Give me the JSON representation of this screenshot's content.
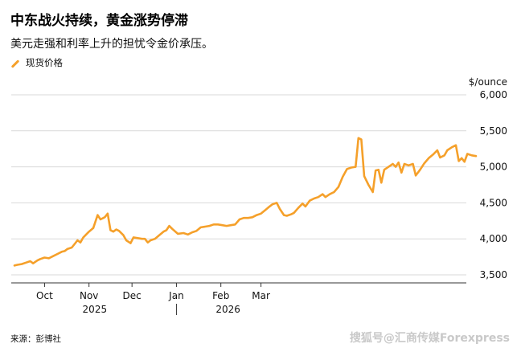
{
  "chart_data": {
    "type": "line",
    "title": "中东战火持续，黄金涨势停滞",
    "subtitle": "美元走强和利率上升的担忧令金价承压。",
    "unit_label": "$/ounce",
    "series": [
      {
        "name": "现货价格",
        "color": "#F5A02A",
        "points": [
          [
            "2025-09-10",
            3630
          ],
          [
            "2025-09-12",
            3640
          ],
          [
            "2025-09-15",
            3650
          ],
          [
            "2025-09-18",
            3670
          ],
          [
            "2025-09-21",
            3690
          ],
          [
            "2025-09-23",
            3660
          ],
          [
            "2025-09-26",
            3700
          ],
          [
            "2025-09-28",
            3720
          ],
          [
            "2025-10-01",
            3740
          ],
          [
            "2025-10-04",
            3730
          ],
          [
            "2025-10-07",
            3760
          ],
          [
            "2025-10-10",
            3790
          ],
          [
            "2025-10-13",
            3820
          ],
          [
            "2025-10-15",
            3830
          ],
          [
            "2025-10-17",
            3860
          ],
          [
            "2025-10-20",
            3880
          ],
          [
            "2025-10-22",
            3930
          ],
          [
            "2025-10-24",
            3980
          ],
          [
            "2025-10-26",
            3950
          ],
          [
            "2025-10-28",
            4020
          ],
          [
            "2025-11-01",
            4100
          ],
          [
            "2025-11-04",
            4150
          ],
          [
            "2025-11-07",
            4330
          ],
          [
            "2025-11-09",
            4270
          ],
          [
            "2025-11-12",
            4300
          ],
          [
            "2025-11-14",
            4350
          ],
          [
            "2025-11-16",
            4120
          ],
          [
            "2025-11-18",
            4100
          ],
          [
            "2025-11-20",
            4130
          ],
          [
            "2025-11-22",
            4110
          ],
          [
            "2025-11-25",
            4050
          ],
          [
            "2025-11-27",
            3980
          ],
          [
            "2025-11-30",
            3940
          ],
          [
            "2025-12-02",
            4020
          ],
          [
            "2025-12-05",
            4010
          ],
          [
            "2025-12-08",
            4000
          ],
          [
            "2025-12-10",
            4000
          ],
          [
            "2025-12-12",
            3950
          ],
          [
            "2025-12-14",
            3980
          ],
          [
            "2025-12-17",
            4000
          ],
          [
            "2025-12-20",
            4050
          ],
          [
            "2025-12-23",
            4100
          ],
          [
            "2025-12-25",
            4120
          ],
          [
            "2025-12-27",
            4180
          ],
          [
            "2025-12-29",
            4140
          ],
          [
            "2026-01-02",
            4070
          ],
          [
            "2026-01-06",
            4080
          ],
          [
            "2026-01-09",
            4060
          ],
          [
            "2026-01-12",
            4090
          ],
          [
            "2026-01-15",
            4110
          ],
          [
            "2026-01-18",
            4160
          ],
          [
            "2026-01-21",
            4170
          ],
          [
            "2026-01-24",
            4180
          ],
          [
            "2026-01-27",
            4200
          ],
          [
            "2026-01-30",
            4200
          ],
          [
            "2026-02-02",
            4190
          ],
          [
            "2026-02-05",
            4180
          ],
          [
            "2026-02-08",
            4190
          ],
          [
            "2026-02-11",
            4200
          ],
          [
            "2026-02-14",
            4270
          ],
          [
            "2026-02-17",
            4290
          ],
          [
            "2026-02-20",
            4290
          ],
          [
            "2026-02-23",
            4300
          ],
          [
            "2026-02-26",
            4330
          ],
          [
            "2026-03-01",
            4350
          ],
          [
            "2026-03-04",
            4400
          ],
          [
            "2026-03-07",
            4450
          ],
          [
            "2026-03-09",
            4480
          ],
          [
            "2026-03-12",
            4500
          ],
          [
            "2026-03-14",
            4420
          ],
          [
            "2026-03-17",
            4330
          ],
          [
            "2026-03-19",
            4320
          ],
          [
            "2026-03-22",
            4340
          ],
          [
            "2026-03-24",
            4360
          ],
          [
            "2026-03-27",
            4430
          ],
          [
            "2026-03-30",
            4490
          ],
          [
            "2026-04-01",
            4450
          ],
          [
            "2026-04-04",
            4530
          ],
          [
            "2026-04-07",
            4560
          ],
          [
            "2026-04-10",
            4580
          ],
          [
            "2026-04-13",
            4620
          ],
          [
            "2026-04-15",
            4580
          ],
          [
            "2026-04-18",
            4620
          ],
          [
            "2026-04-21",
            4650
          ],
          [
            "2026-04-24",
            4720
          ],
          [
            "2026-04-27",
            4860
          ],
          [
            "2026-04-30",
            4970
          ],
          [
            "2026-05-03",
            4990
          ],
          [
            "2026-05-06",
            5000
          ],
          [
            "2026-05-08",
            5400
          ],
          [
            "2026-05-10",
            5380
          ],
          [
            "2026-05-12",
            4870
          ],
          [
            "2026-05-15",
            4750
          ],
          [
            "2026-05-18",
            4650
          ],
          [
            "2026-05-20",
            4950
          ],
          [
            "2026-05-22",
            4960
          ],
          [
            "2026-05-24",
            4780
          ],
          [
            "2026-05-26",
            4960
          ],
          [
            "2026-05-29",
            5000
          ],
          [
            "2026-06-01",
            5040
          ],
          [
            "2026-06-03",
            5000
          ],
          [
            "2026-06-05",
            5060
          ],
          [
            "2026-06-07",
            4920
          ],
          [
            "2026-06-09",
            5040
          ],
          [
            "2026-06-12",
            5020
          ],
          [
            "2026-06-15",
            5040
          ],
          [
            "2026-06-17",
            4880
          ],
          [
            "2026-06-20",
            4960
          ],
          [
            "2026-06-23",
            5050
          ],
          [
            "2026-06-26",
            5120
          ],
          [
            "2026-06-29",
            5170
          ],
          [
            "2026-07-02",
            5230
          ],
          [
            "2026-07-04",
            5130
          ],
          [
            "2026-07-07",
            5160
          ],
          [
            "2026-07-09",
            5230
          ],
          [
            "2026-07-12",
            5270
          ],
          [
            "2026-07-15",
            5300
          ],
          [
            "2026-07-17",
            5080
          ],
          [
            "2026-07-19",
            5120
          ],
          [
            "2026-07-21",
            5070
          ],
          [
            "2026-07-23",
            5180
          ],
          [
            "2026-07-26",
            5160
          ],
          [
            "2026-07-29",
            5150
          ]
        ]
      }
    ],
    "y_ticks": [
      3500,
      4000,
      4500,
      5000,
      5500,
      6000
    ],
    "y_tick_labels": [
      "3,500",
      "4,000",
      "4,500",
      "5,000",
      "5,500",
      "6,000"
    ],
    "ylim": [
      3400,
      6000
    ],
    "x_ticks": [
      "Oct",
      "Nov",
      "Dec",
      "Jan",
      "Feb",
      "Mar"
    ],
    "x_tick_dates": [
      "2025-10-01",
      "2025-11-01",
      "2025-12-01",
      "2026-01-01",
      "2026-02-01",
      "2026-03-01"
    ],
    "year_labels": [
      "2025",
      "2026"
    ],
    "grid": "horizontal",
    "source": "来源：彭博社"
  },
  "watermark": "搜狐号@汇商传媒Forexpress"
}
